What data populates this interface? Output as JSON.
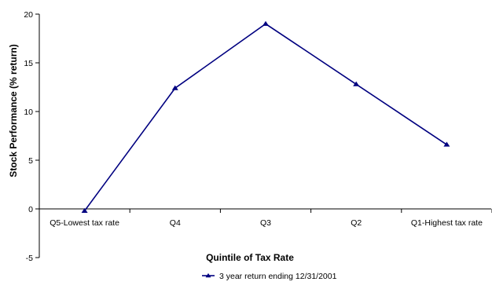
{
  "chart_data": {
    "type": "line",
    "title": "",
    "xlabel": "Quintile of Tax Rate",
    "ylabel": "Stock Performance (% return)",
    "categories": [
      "Q5-Lowest tax rate",
      "Q4",
      "Q3",
      "Q2",
      "Q1-Highest tax rate"
    ],
    "series": [
      {
        "name": "3 year return ending 12/31/2001",
        "values": [
          -0.2,
          12.4,
          19.0,
          12.8,
          6.6
        ],
        "color": "#000080",
        "marker": "triangle"
      }
    ],
    "ylim": [
      -5,
      20
    ],
    "yticks": [
      -5,
      0,
      5,
      10,
      15,
      20
    ],
    "grid": false,
    "legend_position": "bottom-center"
  }
}
